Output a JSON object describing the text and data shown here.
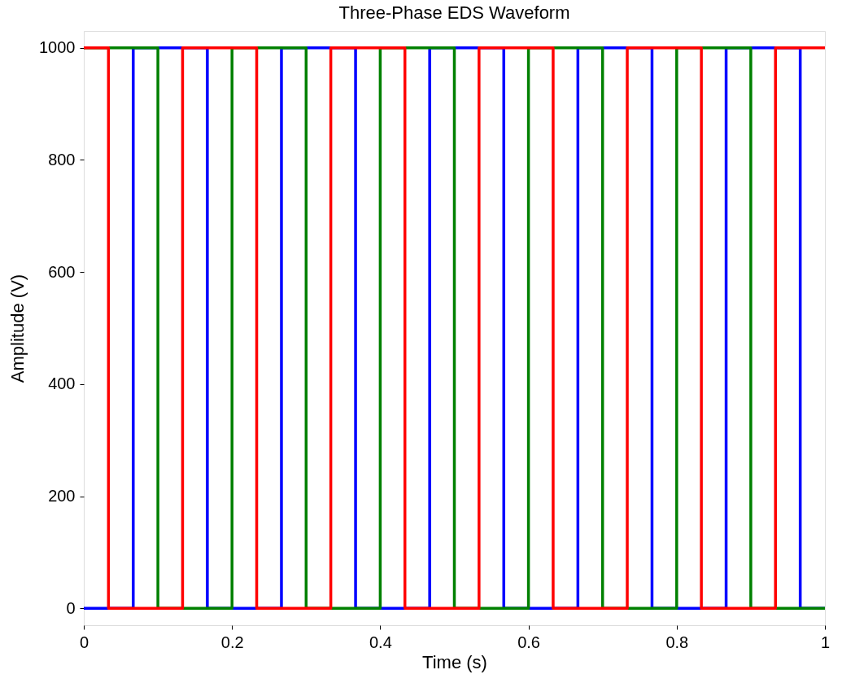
{
  "chart_data": {
    "type": "step",
    "title": "Three-Phase EDS Waveform",
    "xlabel": "Time (s)",
    "ylabel": "Amplitude (V)",
    "xlim": [
      0,
      1
    ],
    "xticks": [
      0,
      0.2,
      0.4,
      0.6,
      0.8,
      1
    ],
    "ylim": [
      -30,
      1030
    ],
    "yticks": [
      0,
      200,
      400,
      600,
      800,
      1000
    ],
    "grid": false,
    "legend": false,
    "line_style": "solid",
    "marker": "none",
    "series": [
      {
        "color": "#0000ff",
        "x": [
          0,
          0.0667,
          0.1667,
          0.2667,
          0.3667,
          0.4667,
          0.5667,
          0.6667,
          0.7667,
          0.8667,
          0.9667,
          1
        ],
        "values": [
          0,
          1000,
          0,
          1000,
          0,
          1000,
          0,
          1000,
          0,
          1000,
          0,
          0
        ]
      },
      {
        "color": "#008000",
        "x": [
          0,
          0.1,
          0.2,
          0.3,
          0.4,
          0.5,
          0.6,
          0.7,
          0.8,
          0.9,
          1
        ],
        "values": [
          1000,
          0,
          1000,
          0,
          1000,
          0,
          1000,
          0,
          1000,
          0,
          0
        ]
      },
      {
        "color": "#ff0000",
        "x": [
          0,
          0.0333,
          0.1333,
          0.2333,
          0.3333,
          0.4333,
          0.5333,
          0.6333,
          0.7333,
          0.8333,
          0.9333,
          1
        ],
        "values": [
          1000,
          0,
          1000,
          0,
          1000,
          0,
          1000,
          0,
          1000,
          0,
          1000,
          1000
        ]
      }
    ]
  }
}
